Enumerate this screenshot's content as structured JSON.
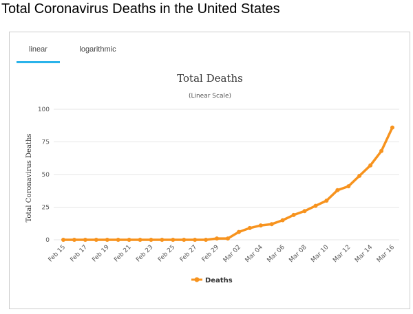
{
  "page": {
    "title": "Total Coronavirus Deaths in the United States"
  },
  "tabs": [
    {
      "label": "linear",
      "active": true
    },
    {
      "label": "logarithmic",
      "active": false
    }
  ],
  "colors": {
    "series": "#f7931e",
    "tab_active": "#2ab3ea",
    "grid": "#e6e6e6"
  },
  "chart_data": {
    "type": "line",
    "title": "Total Deaths",
    "subtitle": "(Linear Scale)",
    "xlabel": "",
    "ylabel": "Total Coronavirus Deaths",
    "ylim": [
      0,
      100
    ],
    "yticks": [
      0,
      25,
      50,
      75,
      100
    ],
    "grid": true,
    "legend": "bottom-center",
    "categories": [
      "Feb 15",
      "Feb 16",
      "Feb 17",
      "Feb 18",
      "Feb 19",
      "Feb 20",
      "Feb 21",
      "Feb 22",
      "Feb 23",
      "Feb 24",
      "Feb 25",
      "Feb 26",
      "Feb 27",
      "Feb 28",
      "Feb 29",
      "Mar 01",
      "Mar 02",
      "Mar 03",
      "Mar 04",
      "Mar 05",
      "Mar 06",
      "Mar 07",
      "Mar 08",
      "Mar 09",
      "Mar 10",
      "Mar 11",
      "Mar 12",
      "Mar 13",
      "Mar 14",
      "Mar 15",
      "Mar 16"
    ],
    "xticks": [
      "Feb 15",
      "Feb 17",
      "Feb 19",
      "Feb 21",
      "Feb 23",
      "Feb 25",
      "Feb 27",
      "Feb 29",
      "Mar 02",
      "Mar 04",
      "Mar 06",
      "Mar 08",
      "Mar 10",
      "Mar 12",
      "Mar 14",
      "Mar 16"
    ],
    "series": [
      {
        "name": "Deaths",
        "values": [
          0,
          0,
          0,
          0,
          0,
          0,
          0,
          0,
          0,
          0,
          0,
          0,
          0,
          0,
          1,
          1,
          6,
          9,
          11,
          12,
          15,
          19,
          22,
          26,
          30,
          38,
          41,
          49,
          57,
          68,
          86
        ]
      }
    ]
  }
}
